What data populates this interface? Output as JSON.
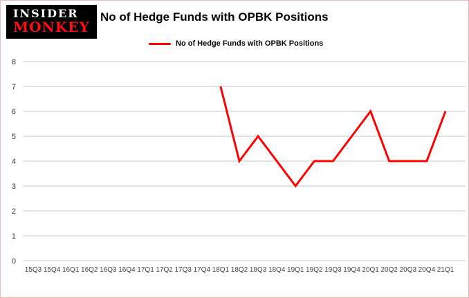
{
  "header": {
    "logo": {
      "line1": "INSIDER",
      "line2": "MONKEY"
    },
    "title": "No of Hedge Funds with OPBK Positions"
  },
  "legend": {
    "label": "No of Hedge Funds with OPBK Positions",
    "color": "#fe0000"
  },
  "colors": {
    "accent": "#fe0000",
    "grid": "#c9c9c9",
    "logo_bg": "#000000",
    "logo_red": "#fe0b13"
  },
  "chart_data": {
    "type": "line",
    "title": "No of Hedge Funds with OPBK Positions",
    "categories": [
      "15Q3",
      "15Q4",
      "16Q1",
      "16Q2",
      "16Q3",
      "16Q4",
      "17Q1",
      "17Q2",
      "17Q3",
      "17Q4",
      "18Q1",
      "18Q2",
      "18Q3",
      "18Q4",
      "19Q1",
      "19Q2",
      "19Q3",
      "19Q4",
      "20Q1",
      "20Q2",
      "20Q3",
      "20Q4",
      "21Q1"
    ],
    "series": [
      {
        "name": "No of Hedge Funds with OPBK Positions",
        "color": "#fe0000",
        "start_index": 10,
        "values": [
          7,
          4,
          5,
          4,
          3,
          4,
          4,
          5,
          6,
          4,
          4,
          4,
          6
        ]
      }
    ],
    "ylim": [
      0,
      8
    ],
    "yticks": [
      0,
      1,
      2,
      3,
      4,
      5,
      6,
      7,
      8
    ],
    "xlabel": "",
    "ylabel": "",
    "grid": true,
    "legend_position": "top"
  }
}
